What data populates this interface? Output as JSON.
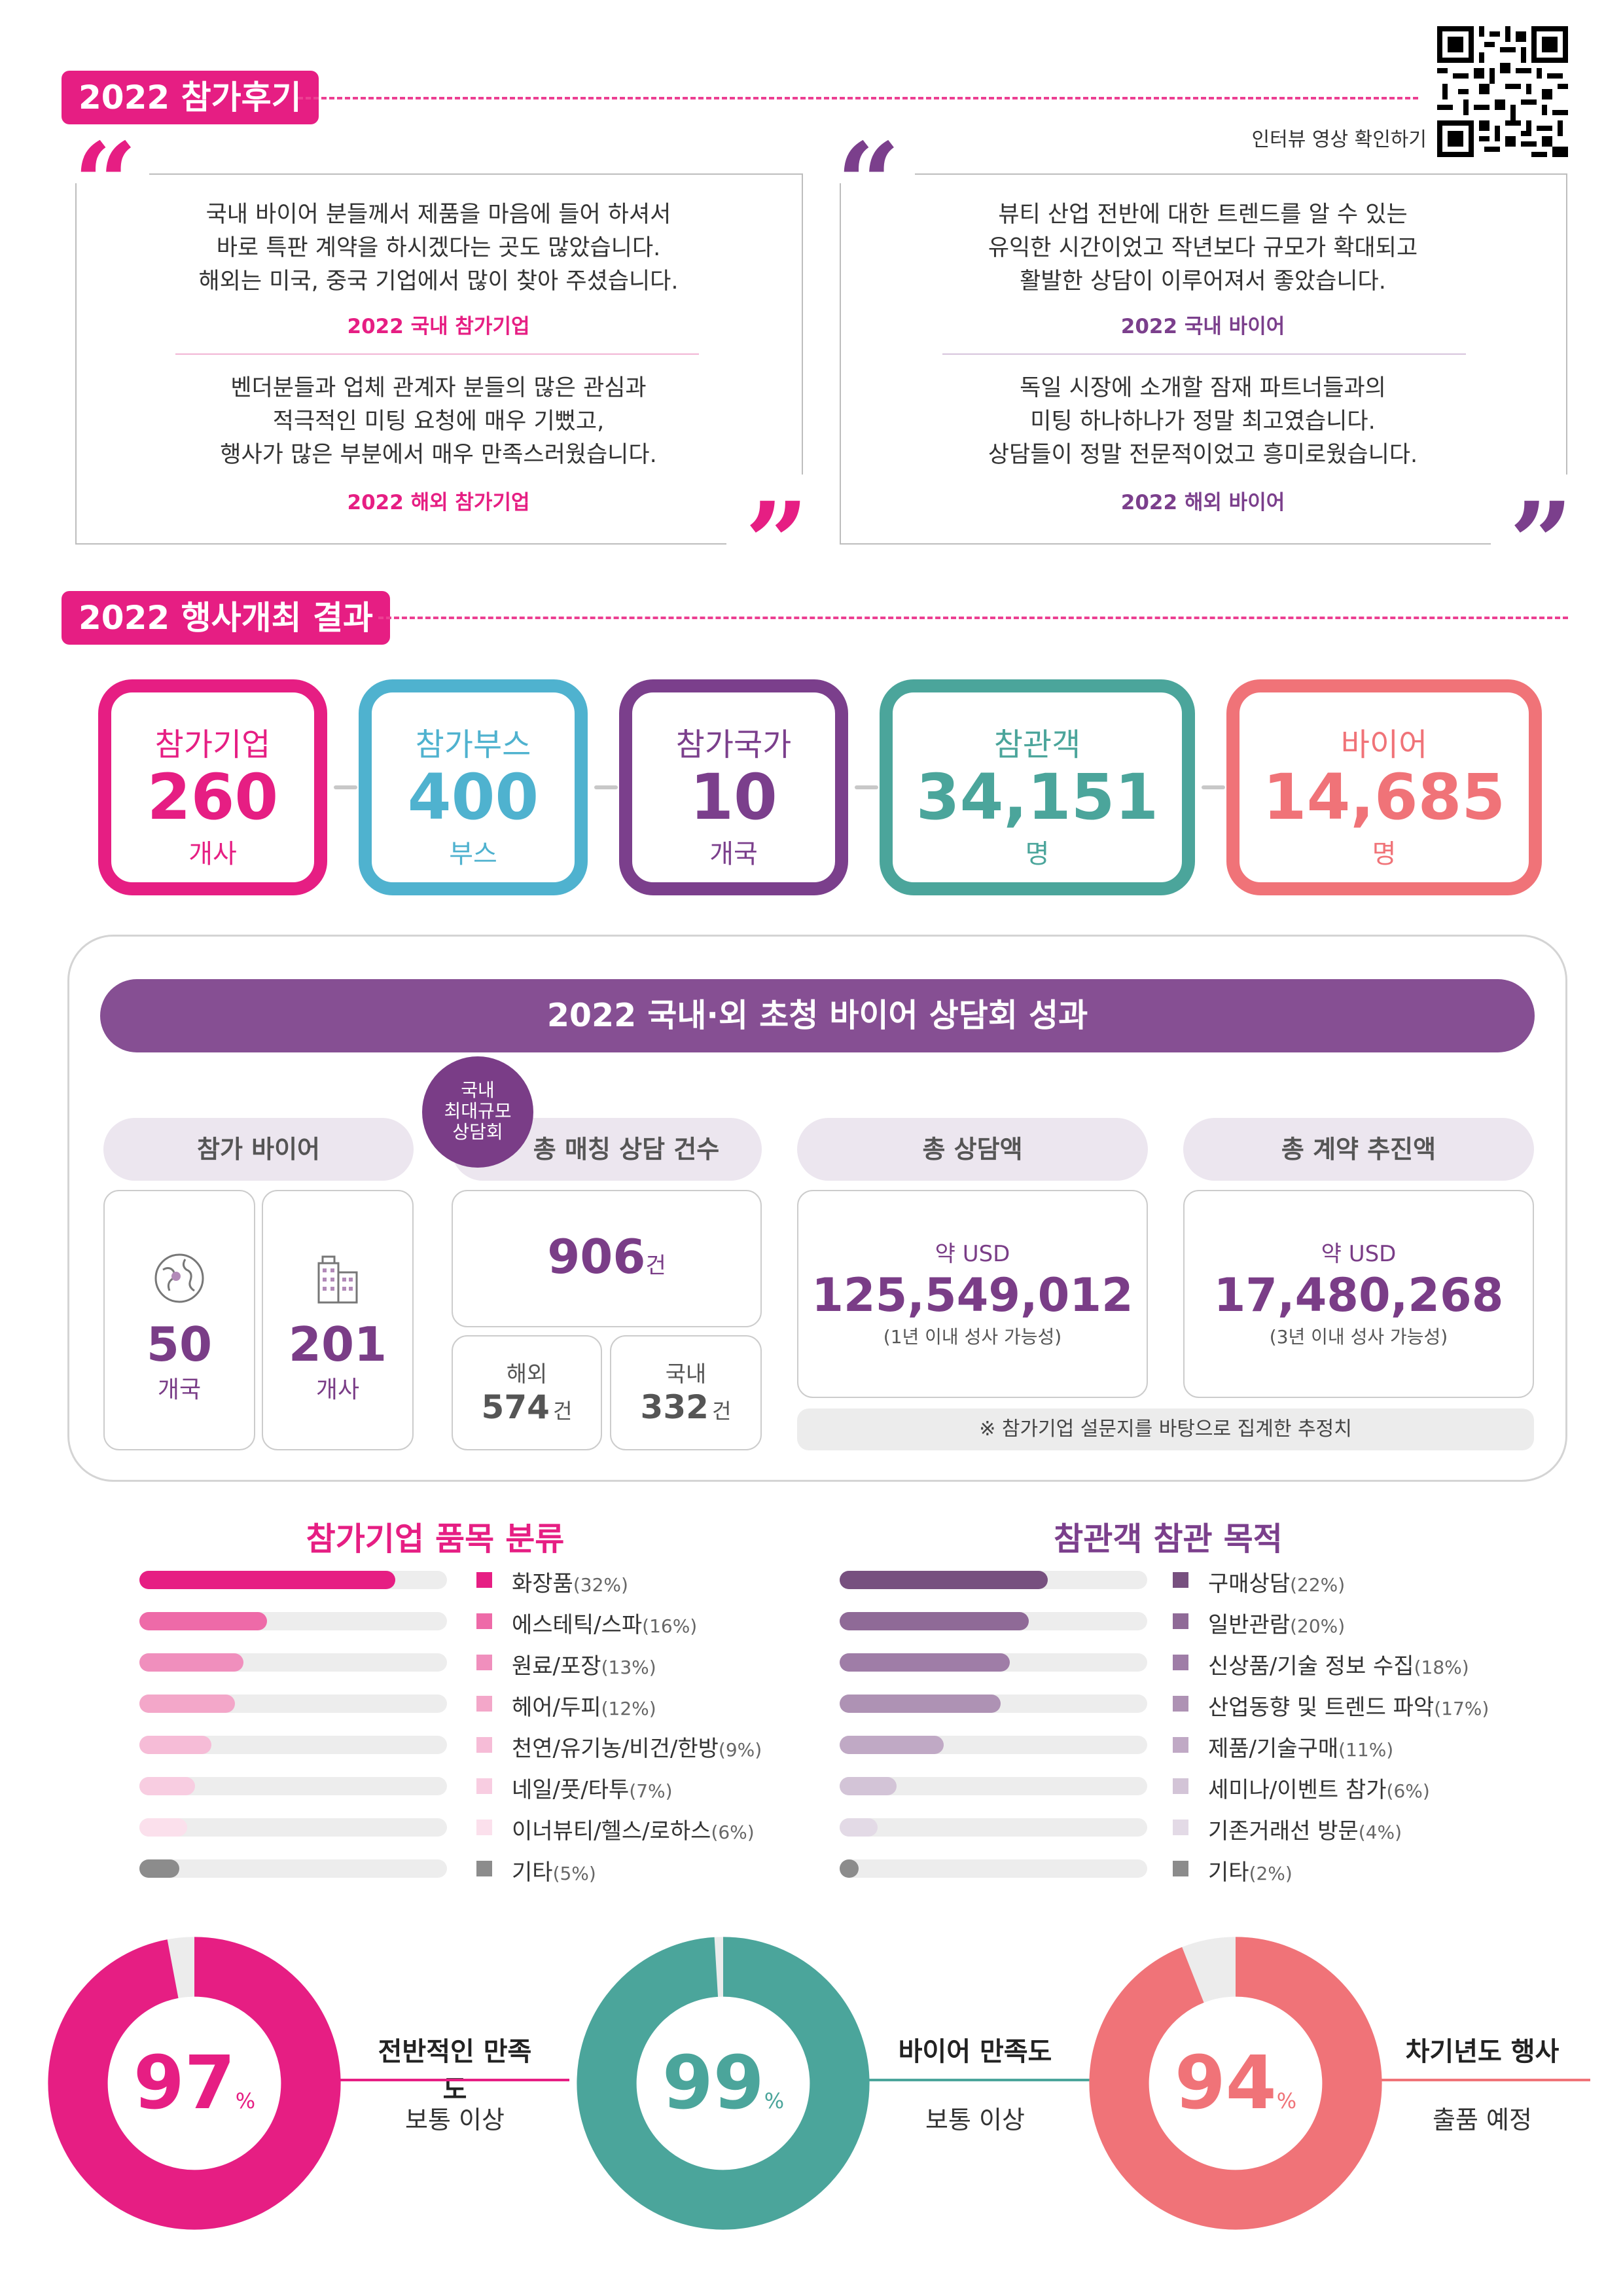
{
  "reviews": {
    "title": "2022 참가후기",
    "qr_caption": "인터뷰 영상 확인하기",
    "left": [
      {
        "lines": [
          "국내 바이어 분들께서 제품을 마음에 들어 하셔서",
          "바로 특판 계약을 하시겠다는 곳도 많았습니다.",
          "해외는 미국, 중국 기업에서 많이 찾아 주셨습니다."
        ],
        "source": "2022 국내 참가기업"
      },
      {
        "lines": [
          "벤더분들과 업체 관계자 분들의 많은 관심과",
          "적극적인 미팅 요청에 매우 기뻤고,",
          "행사가 많은 부분에서 매우 만족스러웠습니다."
        ],
        "source": "2022 해외 참가기업"
      }
    ],
    "right": [
      {
        "lines": [
          "뷰티 산업 전반에 대한 트렌드를 알 수 있는",
          "유익한 시간이었고 작년보다 규모가 확대되고",
          "활발한 상담이 이루어져서 좋았습니다."
        ],
        "source": "2022 국내 바이어"
      },
      {
        "lines": [
          "독일 시장에 소개할 잠재 파트너들과의",
          "미팅 하나하나가 정말 최고였습니다.",
          "상담들이 정말 전문적이었고 흥미로웠습니다."
        ],
        "source": "2022 해외 바이어"
      }
    ]
  },
  "results": {
    "title": "2022 행사개최 결과",
    "stats": [
      {
        "label": "참가기업",
        "value": "260",
        "unit": "개사",
        "color": "#e61e83"
      },
      {
        "label": "참가부스",
        "value": "400",
        "unit": "부스",
        "color": "#4fb2cf"
      },
      {
        "label": "참가국가",
        "value": "10",
        "unit": "개국",
        "color": "#7b3f8c"
      },
      {
        "label": "참관객",
        "value": "34,151",
        "unit": "명",
        "color": "#4ba59b"
      },
      {
        "label": "바이어",
        "value": "14,685",
        "unit": "명",
        "color": "#f07378"
      }
    ]
  },
  "buyer_meeting": {
    "title": "2022 국내·외 초청 바이어 상담회 성과",
    "badge": [
      "국내",
      "최대규모",
      "상담회"
    ],
    "participants": {
      "header": "참가 바이어",
      "countries_value": "50",
      "countries_unit": "개국",
      "companies_value": "201",
      "companies_unit": "개사"
    },
    "matching": {
      "header": "총 매칭 상담 건수",
      "total": "906",
      "total_unit": "건",
      "overseas_label": "해외",
      "overseas_value": "574",
      "domestic_label": "국내",
      "domestic_value": "332",
      "unit": "건"
    },
    "consult_amount": {
      "header": "총 상담액",
      "prefix": "약 USD",
      "value": "125,549,012",
      "note": "(1년 이내 성사 가능성)"
    },
    "contract_amount": {
      "header": "총 계약 추진액",
      "prefix": "약 USD",
      "value": "17,480,268",
      "note": "(3년 이내 성사 가능성)"
    },
    "footnote": "※ 참가기업 설문지를 바탕으로 집계한 추정치"
  },
  "chart_data": [
    {
      "type": "bar",
      "title": "참가기업 품목 분류",
      "categories": [
        "화장품",
        "에스테틱/스파",
        "원료/포장",
        "헤어/두피",
        "천연/유기농/비건/한방",
        "네일/풋/타투",
        "이너뷰티/헬스/로하스",
        "기타"
      ],
      "values": [
        32,
        16,
        13,
        12,
        9,
        7,
        6,
        5
      ],
      "labels": [
        "(32%)",
        "(16%)",
        "(13%)",
        "(12%)",
        "(9%)",
        "(7%)",
        "(6%)",
        "(5%)"
      ],
      "colors": [
        "#e61e83",
        "#ee6aa8",
        "#f08fbd",
        "#f3a7c9",
        "#f6bcd7",
        "#f8cde1",
        "#fbe0ec",
        "#8c8c8c"
      ]
    },
    {
      "type": "bar",
      "title": "참관객 참관 목적",
      "categories": [
        "구매상담",
        "일반관람",
        "신상품/기술 정보 수집",
        "산업동향 및 트렌드 파악",
        "제품/기술구매",
        "세미나/이벤트 참가",
        "기존거래선 방문",
        "기타"
      ],
      "values": [
        22,
        20,
        18,
        17,
        11,
        6,
        4,
        2
      ],
      "labels": [
        "(22%)",
        "(20%)",
        "(18%)",
        "(17%)",
        "(11%)",
        "(6%)",
        "(4%)",
        "(2%)"
      ],
      "colors": [
        "#77507f",
        "#8f6a97",
        "#9f7da7",
        "#ae92b4",
        "#c0a9c5",
        "#d3c4d7",
        "#e3dae6",
        "#8c8c8c"
      ]
    },
    {
      "type": "pie",
      "donuts": [
        {
          "value": 97,
          "unit": "%",
          "label": "전반적인 만족도",
          "sub": "보통 이상",
          "color": "#e61e83"
        },
        {
          "value": 99,
          "unit": "%",
          "label": "바이어 만족도",
          "sub": "보통 이상",
          "color": "#4ba59b"
        },
        {
          "value": 94,
          "unit": "%",
          "label": "차기년도 행사",
          "sub": "출품 예정",
          "color": "#f07378"
        }
      ]
    }
  ]
}
